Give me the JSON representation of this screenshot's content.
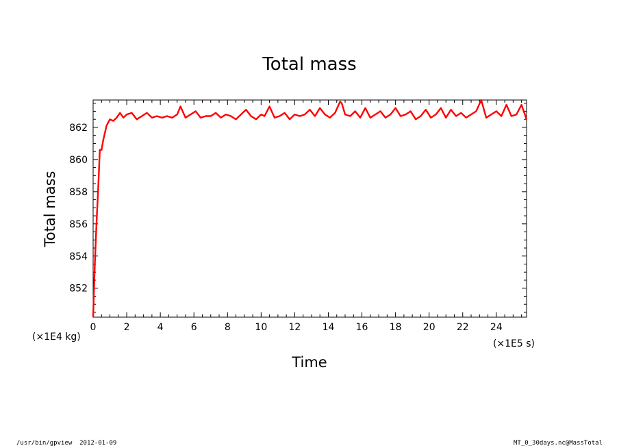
{
  "chart_data": {
    "type": "line",
    "title": "Total mass",
    "xlabel": "Time",
    "ylabel": "Total mass",
    "x_unit": "(×1E5 s)",
    "y_unit": "(×1E4 kg)",
    "xlim": [
      0,
      25.8
    ],
    "ylim": [
      850.2,
      863.7
    ],
    "x_ticks": [
      0,
      2,
      4,
      6,
      8,
      10,
      12,
      14,
      16,
      18,
      20,
      22,
      24
    ],
    "y_ticks": [
      852,
      854,
      856,
      858,
      860,
      862
    ],
    "grid": false,
    "series": [
      {
        "color": "#ff0000",
        "x": [
          0,
          0.1,
          0.2,
          0.3,
          0.4,
          0.5,
          0.6,
          0.8,
          1.0,
          1.2,
          1.4,
          1.6,
          1.8,
          2.0,
          2.3,
          2.6,
          2.9,
          3.2,
          3.5,
          3.8,
          4.1,
          4.4,
          4.7,
          5.0,
          5.2,
          5.5,
          5.8,
          6.1,
          6.4,
          6.7,
          7.0,
          7.3,
          7.6,
          7.9,
          8.2,
          8.5,
          8.8,
          9.1,
          9.4,
          9.7,
          10.0,
          10.2,
          10.5,
          10.8,
          11.1,
          11.4,
          11.7,
          12.0,
          12.3,
          12.6,
          12.9,
          13.2,
          13.5,
          13.8,
          14.1,
          14.4,
          14.7,
          14.8,
          15.0,
          15.3,
          15.6,
          15.9,
          16.2,
          16.5,
          16.8,
          17.1,
          17.4,
          17.7,
          18.0,
          18.3,
          18.6,
          18.9,
          19.2,
          19.5,
          19.8,
          20.1,
          20.4,
          20.7,
          21.0,
          21.3,
          21.6,
          21.9,
          22.2,
          22.5,
          22.8,
          23.1,
          23.4,
          23.7,
          24.0,
          24.3,
          24.6,
          24.9,
          25.2,
          25.5,
          25.8
        ],
        "y": [
          850.2,
          853.5,
          856.0,
          858.2,
          860.6,
          860.6,
          861.2,
          862.1,
          862.5,
          862.4,
          862.6,
          862.9,
          862.6,
          862.8,
          862.9,
          862.5,
          862.7,
          862.9,
          862.6,
          862.7,
          862.6,
          862.7,
          862.6,
          862.8,
          863.3,
          862.6,
          862.8,
          863.0,
          862.6,
          862.7,
          862.7,
          862.9,
          862.6,
          862.8,
          862.7,
          862.5,
          862.8,
          863.1,
          862.7,
          862.5,
          862.8,
          862.7,
          863.3,
          862.6,
          862.7,
          862.9,
          862.5,
          862.8,
          862.7,
          862.8,
          863.1,
          862.7,
          863.2,
          862.8,
          862.6,
          862.9,
          863.6,
          863.5,
          862.8,
          862.7,
          863.0,
          862.6,
          863.2,
          862.6,
          862.8,
          863.0,
          862.6,
          862.8,
          863.2,
          862.7,
          862.8,
          863.0,
          862.5,
          862.7,
          863.1,
          862.6,
          862.8,
          863.2,
          862.6,
          863.1,
          862.7,
          862.9,
          862.6,
          862.8,
          863.0,
          863.7,
          862.6,
          862.8,
          863.0,
          862.7,
          863.4,
          862.7,
          862.8,
          863.4,
          862.5
        ]
      }
    ]
  },
  "footer": {
    "left": "/usr/bin/gpview  2012-01-09",
    "right": "MT_0_30days.nc@MassTotal"
  }
}
